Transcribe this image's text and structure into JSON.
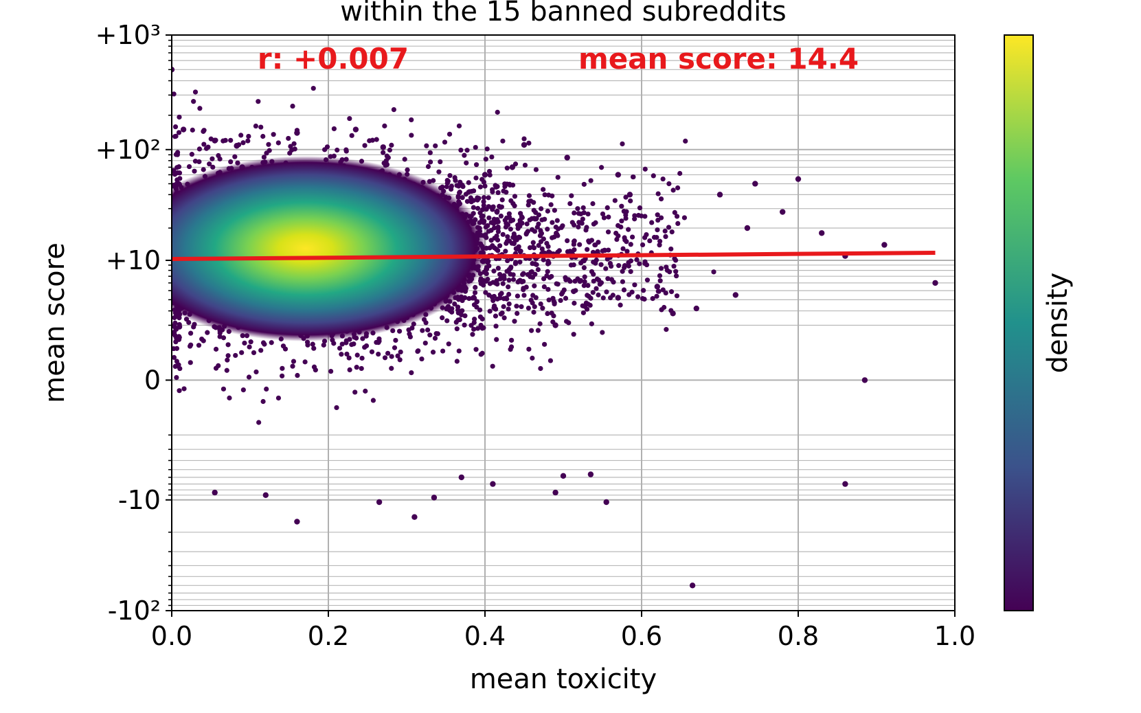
{
  "chart_data": {
    "type": "scatter",
    "title": "within the 15 banned subreddits",
    "xlabel": "mean toxicity",
    "ylabel": "mean score",
    "xlim": [
      0.0,
      1.0
    ],
    "ylim_symlog": [
      -100,
      1000
    ],
    "y_scale": "symlog",
    "grid": true,
    "x_ticks": [
      {
        "value": 0.0,
        "label": "0.0"
      },
      {
        "value": 0.2,
        "label": "0.2"
      },
      {
        "value": 0.4,
        "label": "0.4"
      },
      {
        "value": 0.6,
        "label": "0.6"
      },
      {
        "value": 0.8,
        "label": "0.8"
      },
      {
        "value": 1.0,
        "label": "1.0"
      }
    ],
    "y_ticks": [
      {
        "value": -100,
        "label": "-10²"
      },
      {
        "value": -10,
        "label": "-10"
      },
      {
        "value": 0,
        "label": "0"
      },
      {
        "value": 10,
        "label": "+10"
      },
      {
        "value": 100,
        "label": "+10²"
      },
      {
        "value": 1000,
        "label": "+10³"
      }
    ],
    "annotations": {
      "correlation": "r: +0.007",
      "mean_score": "mean score: 14.4"
    },
    "annotation_color": "#e8191c",
    "regression_line": {
      "x": [
        0.0,
        0.975
      ],
      "y": [
        10.3,
        11.8
      ],
      "color": "#e8191c"
    },
    "colorbar_label": "density",
    "colormap": [
      "#440154",
      "#3b528b",
      "#21918c",
      "#5ec962",
      "#fde725"
    ],
    "point_color": "#440154",
    "density_core": {
      "center_x": 0.18,
      "center_y": 12,
      "peak_color": "#fde725"
    },
    "sample_points": [
      [
        0.0,
        500
      ],
      [
        0.015,
        150
      ],
      [
        0.055,
        120
      ],
      [
        0.083,
        108
      ],
      [
        0.09,
        70
      ],
      [
        0.16,
        140
      ],
      [
        0.235,
        150
      ],
      [
        0.27,
        105
      ],
      [
        0.4,
        60
      ],
      [
        0.435,
        70
      ],
      [
        0.45,
        110
      ],
      [
        0.505,
        85
      ],
      [
        0.57,
        60
      ],
      [
        0.585,
        40
      ],
      [
        0.7,
        40
      ],
      [
        0.745,
        50
      ],
      [
        0.8,
        55
      ],
      [
        0.735,
        20
      ],
      [
        0.78,
        28
      ],
      [
        0.83,
        18
      ],
      [
        0.91,
        14
      ],
      [
        0.975,
        6
      ],
      [
        0.86,
        11
      ],
      [
        0.885,
        0
      ],
      [
        0.86,
        -7
      ],
      [
        0.665,
        -60
      ],
      [
        0.555,
        -10.5
      ],
      [
        0.49,
        -8.5
      ],
      [
        0.5,
        -5.8
      ],
      [
        0.535,
        -5.6
      ],
      [
        0.335,
        -9.5
      ],
      [
        0.31,
        -14.5
      ],
      [
        0.16,
        -16
      ],
      [
        0.265,
        -10.5
      ],
      [
        0.055,
        -8.5
      ],
      [
        0.12,
        -9
      ],
      [
        0.62,
        5.5
      ],
      [
        0.67,
        3.2
      ],
      [
        0.72,
        4.5
      ],
      [
        0.57,
        4.2
      ],
      [
        0.64,
        2.8
      ],
      [
        0.49,
        2
      ],
      [
        0.41,
        -7
      ],
      [
        0.37,
        -6
      ]
    ]
  }
}
